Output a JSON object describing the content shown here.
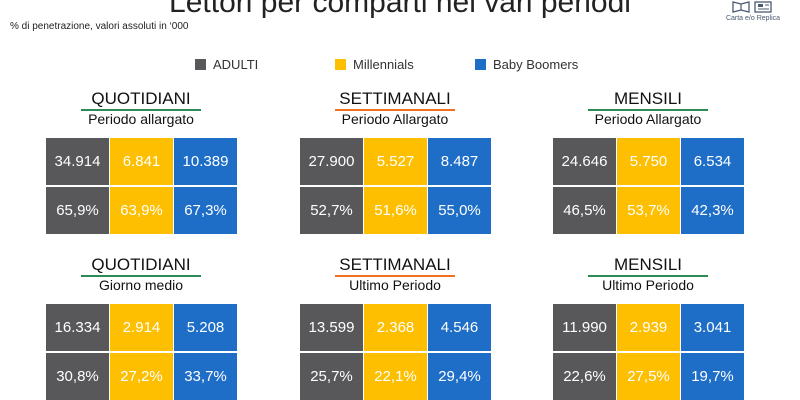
{
  "header": {
    "title": "Lettori per comparti nei vari periodi",
    "subtitle": "% di penetrazione, valori  assoluti in ‘000",
    "logo_text": "Carta e/o Replica"
  },
  "colors": {
    "adulti": "#58585a",
    "millennials": "#fdbf00",
    "baby_boomers": "#1e6ec8",
    "rule_quotidiani": "#2e8b57",
    "rule_settimanali": "#f07020",
    "rule_mensili": "#2e8b57"
  },
  "legend": [
    {
      "label": "ADULTI",
      "color": "#58585a"
    },
    {
      "label": "Millennials",
      "color": "#fdbf00"
    },
    {
      "label": "Baby Boomers",
      "color": "#1e6ec8"
    }
  ],
  "chart_data": {
    "type": "table",
    "columns": [
      "ADULTI",
      "Millennials",
      "Baby Boomers"
    ],
    "panels": [
      {
        "title": "QUOTIDIANI",
        "period": "Periodo allargato",
        "values": [
          "34.914",
          "6.841",
          "10.389"
        ],
        "percentages": [
          "65,9%",
          "63,9%",
          "67,3%"
        ]
      },
      {
        "title": "SETTIMANALI",
        "period": "Periodo Allargato",
        "values": [
          "27.900",
          "5.527",
          "8.487"
        ],
        "percentages": [
          "52,7%",
          "51,6%",
          "55,0%"
        ]
      },
      {
        "title": "MENSILI",
        "period": "Periodo Allargato",
        "values": [
          "24.646",
          "5.750",
          "6.534"
        ],
        "percentages": [
          "46,5%",
          "53,7%",
          "42,3%"
        ]
      },
      {
        "title": "QUOTIDIANI",
        "period": "Giorno medio",
        "values": [
          "16.334",
          "2.914",
          "5.208"
        ],
        "percentages": [
          "30,8%",
          "27,2%",
          "33,7%"
        ]
      },
      {
        "title": "SETTIMANALI",
        "period": "Ultimo Periodo",
        "values": [
          "13.599",
          "2.368",
          "4.546"
        ],
        "percentages": [
          "25,7%",
          "22,1%",
          "29,4%"
        ]
      },
      {
        "title": "MENSILI",
        "period": "Ultimo Periodo",
        "values": [
          "11.990",
          "2.939",
          "3.041"
        ],
        "percentages": [
          "22,6%",
          "27,5%",
          "19,7%"
        ]
      }
    ]
  }
}
